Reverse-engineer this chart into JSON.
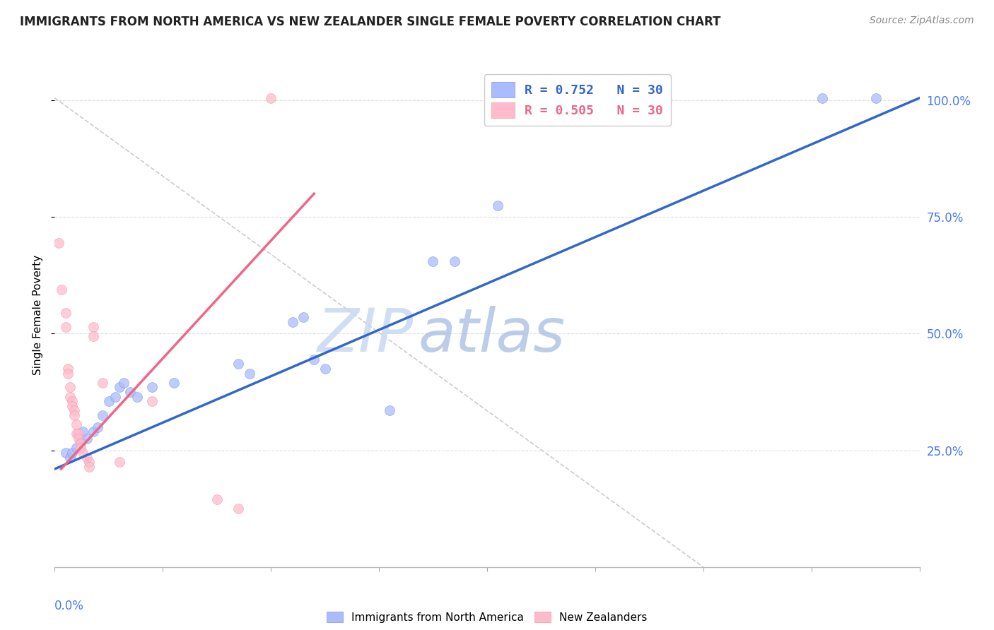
{
  "title": "IMMIGRANTS FROM NORTH AMERICA VS NEW ZEALANDER SINGLE FEMALE POVERTY CORRELATION CHART",
  "source": "Source: ZipAtlas.com",
  "ylabel": "Single Female Poverty",
  "right_yticklabels": [
    "25.0%",
    "50.0%",
    "75.0%",
    "100.0%"
  ],
  "right_ytick_vals": [
    0.25,
    0.5,
    0.75,
    1.0
  ],
  "xmin": 0.0,
  "xmax": 0.4,
  "ymin": 0.0,
  "ymax": 1.08,
  "legend_r_blue": "R = 0.752",
  "legend_n_blue": "N = 30",
  "legend_r_pink": "R = 0.505",
  "legend_n_pink": "N = 30",
  "legend_label_blue": "Immigrants from North America",
  "legend_label_pink": "New Zealanders",
  "watermark_zip": "ZIP",
  "watermark_atlas": "atlas",
  "blue_dots": [
    [
      0.005,
      0.245
    ],
    [
      0.007,
      0.235
    ],
    [
      0.008,
      0.245
    ],
    [
      0.01,
      0.255
    ],
    [
      0.012,
      0.27
    ],
    [
      0.013,
      0.29
    ],
    [
      0.015,
      0.275
    ],
    [
      0.018,
      0.29
    ],
    [
      0.02,
      0.3
    ],
    [
      0.022,
      0.325
    ],
    [
      0.025,
      0.355
    ],
    [
      0.028,
      0.365
    ],
    [
      0.03,
      0.385
    ],
    [
      0.032,
      0.395
    ],
    [
      0.035,
      0.375
    ],
    [
      0.038,
      0.365
    ],
    [
      0.045,
      0.385
    ],
    [
      0.055,
      0.395
    ],
    [
      0.085,
      0.435
    ],
    [
      0.09,
      0.415
    ],
    [
      0.11,
      0.525
    ],
    [
      0.115,
      0.535
    ],
    [
      0.12,
      0.445
    ],
    [
      0.125,
      0.425
    ],
    [
      0.155,
      0.335
    ],
    [
      0.175,
      0.655
    ],
    [
      0.185,
      0.655
    ],
    [
      0.205,
      0.775
    ],
    [
      0.355,
      1.005
    ],
    [
      0.38,
      1.005
    ]
  ],
  "pink_dots": [
    [
      0.002,
      0.695
    ],
    [
      0.003,
      0.595
    ],
    [
      0.005,
      0.545
    ],
    [
      0.005,
      0.515
    ],
    [
      0.006,
      0.425
    ],
    [
      0.006,
      0.415
    ],
    [
      0.007,
      0.385
    ],
    [
      0.007,
      0.365
    ],
    [
      0.008,
      0.355
    ],
    [
      0.008,
      0.345
    ],
    [
      0.009,
      0.335
    ],
    [
      0.009,
      0.325
    ],
    [
      0.01,
      0.305
    ],
    [
      0.01,
      0.285
    ],
    [
      0.011,
      0.285
    ],
    [
      0.011,
      0.275
    ],
    [
      0.012,
      0.265
    ],
    [
      0.012,
      0.255
    ],
    [
      0.013,
      0.245
    ],
    [
      0.015,
      0.235
    ],
    [
      0.016,
      0.225
    ],
    [
      0.016,
      0.215
    ],
    [
      0.018,
      0.515
    ],
    [
      0.018,
      0.495
    ],
    [
      0.022,
      0.395
    ],
    [
      0.03,
      0.225
    ],
    [
      0.045,
      0.355
    ],
    [
      0.1,
      1.005
    ],
    [
      0.075,
      0.145
    ],
    [
      0.085,
      0.125
    ]
  ],
  "blue_line": [
    [
      0.0,
      0.21
    ],
    [
      0.4,
      1.005
    ]
  ],
  "pink_line": [
    [
      0.003,
      0.21
    ],
    [
      0.12,
      0.8
    ]
  ],
  "ref_line": [
    [
      0.0,
      1.005
    ],
    [
      0.3,
      0.0
    ]
  ],
  "blue_line_color": "#3366cc",
  "pink_line_color": "#ee6688",
  "ref_line_color": "#cccccc",
  "dot_alpha": 0.75,
  "dot_size": 100,
  "grid_color": "#dddddd",
  "axis_color": "#4477ff",
  "title_color": "#222222",
  "source_color": "#888888",
  "background_color": "#ffffff"
}
